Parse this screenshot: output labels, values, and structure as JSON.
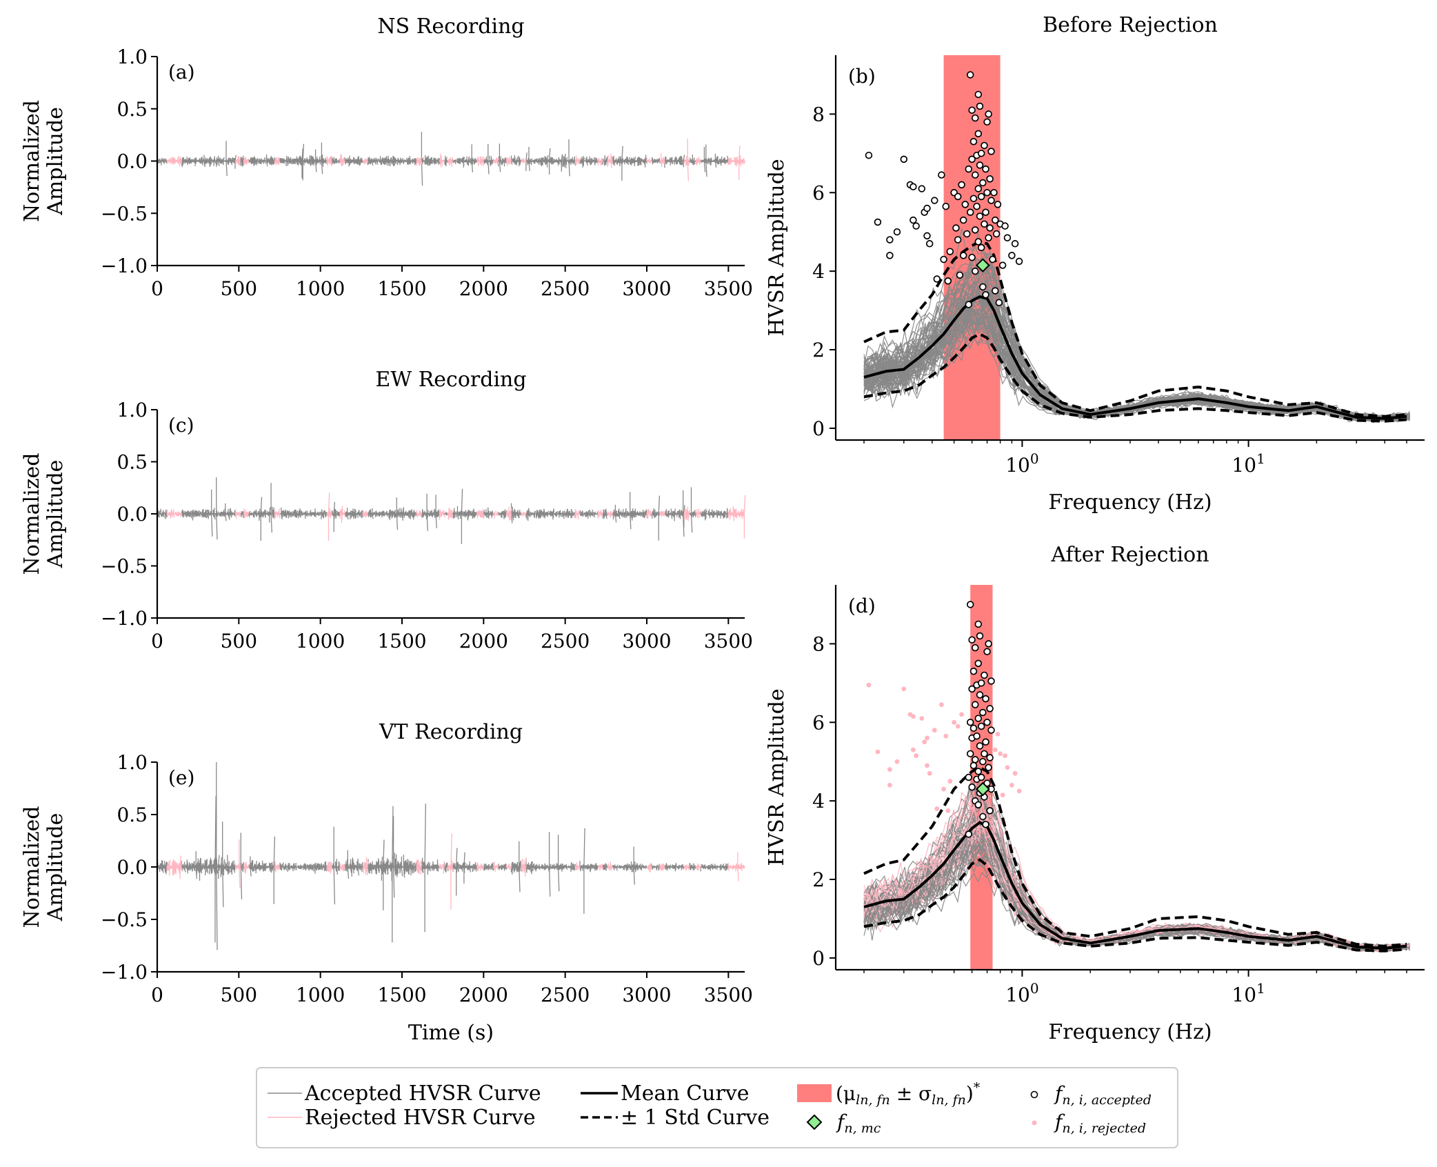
{
  "chart_data": [
    {
      "id": "a",
      "type": "line",
      "panel_label": "(a)",
      "title": "NS Recording",
      "xlabel": "",
      "ylabel": "Normalized\nAmplitude",
      "xlim": [
        0,
        3600
      ],
      "ylim": [
        -1.0,
        1.0
      ],
      "xticks": [
        "0",
        "500",
        "1000",
        "1500",
        "2000",
        "2500",
        "3000",
        "3500"
      ],
      "yticks": [
        "−1.0",
        "−0.5",
        "0.0",
        "0.5",
        "1.0"
      ],
      "noise_amplitude": 0.09,
      "peak_amplitude": 0.28,
      "rejected_windows": [
        [
          60,
          110
        ],
        [
          110,
          150
        ],
        [
          480,
          510
        ],
        [
          530,
          560
        ],
        [
          720,
          750
        ],
        [
          1040,
          1070
        ],
        [
          1120,
          1150
        ],
        [
          1260,
          1290
        ],
        [
          1590,
          1620
        ],
        [
          1730,
          1760
        ],
        [
          1780,
          1810
        ],
        [
          1960,
          2000
        ],
        [
          2060,
          2090
        ],
        [
          2140,
          2170
        ],
        [
          2230,
          2260
        ],
        [
          2560,
          2590
        ],
        [
          2700,
          2730
        ],
        [
          2760,
          2790
        ],
        [
          3000,
          3030
        ],
        [
          3080,
          3110
        ],
        [
          3230,
          3260
        ],
        [
          3300,
          3330
        ],
        [
          3500,
          3600
        ]
      ]
    },
    {
      "id": "c",
      "type": "line",
      "panel_label": "(c)",
      "title": "EW Recording",
      "xlabel": "",
      "ylabel": "Normalized\nAmplitude",
      "xlim": [
        0,
        3600
      ],
      "ylim": [
        -1.0,
        1.0
      ],
      "xticks": [
        "0",
        "500",
        "1000",
        "1500",
        "2000",
        "2500",
        "3000",
        "3500"
      ],
      "yticks": [
        "−1.0",
        "−0.5",
        "0.0",
        "0.5",
        "1.0"
      ],
      "noise_amplitude": 0.09,
      "peak_amplitude": 0.35,
      "rejected_windows": [
        [
          60,
          110
        ],
        [
          110,
          150
        ],
        [
          480,
          510
        ],
        [
          530,
          560
        ],
        [
          720,
          750
        ],
        [
          1040,
          1070
        ],
        [
          1120,
          1150
        ],
        [
          1260,
          1290
        ],
        [
          1590,
          1620
        ],
        [
          1730,
          1760
        ],
        [
          1780,
          1810
        ],
        [
          1960,
          2000
        ],
        [
          2060,
          2090
        ],
        [
          2140,
          2170
        ],
        [
          2230,
          2260
        ],
        [
          2560,
          2590
        ],
        [
          2700,
          2730
        ],
        [
          2760,
          2790
        ],
        [
          3000,
          3030
        ],
        [
          3080,
          3110
        ],
        [
          3230,
          3260
        ],
        [
          3300,
          3330
        ],
        [
          3500,
          3600
        ]
      ]
    },
    {
      "id": "e",
      "type": "line",
      "panel_label": "(e)",
      "title": "VT Recording",
      "xlabel": "Time (s)",
      "ylabel": "Normalized\nAmplitude",
      "xlim": [
        0,
        3600
      ],
      "ylim": [
        -1.0,
        1.0
      ],
      "xticks": [
        "0",
        "500",
        "1000",
        "1500",
        "2000",
        "2500",
        "3000",
        "3500"
      ],
      "yticks": [
        "−1.0",
        "−0.5",
        "0.0",
        "0.5",
        "1.0"
      ],
      "noise_amplitude": 0.1,
      "peak_amplitude": 1.0,
      "rejected_windows": [
        [
          60,
          110
        ],
        [
          110,
          150
        ],
        [
          480,
          510
        ],
        [
          530,
          560
        ],
        [
          720,
          750
        ],
        [
          1040,
          1070
        ],
        [
          1120,
          1150
        ],
        [
          1260,
          1290
        ],
        [
          1590,
          1620
        ],
        [
          1730,
          1760
        ],
        [
          1780,
          1810
        ],
        [
          1960,
          2000
        ],
        [
          2060,
          2090
        ],
        [
          2140,
          2170
        ],
        [
          2230,
          2260
        ],
        [
          2560,
          2590
        ],
        [
          2700,
          2730
        ],
        [
          2760,
          2790
        ],
        [
          3000,
          3030
        ],
        [
          3080,
          3110
        ],
        [
          3230,
          3260
        ],
        [
          3300,
          3330
        ],
        [
          3500,
          3600
        ]
      ]
    },
    {
      "id": "b",
      "type": "line",
      "panel_label": "(b)",
      "title": "Before Rejection",
      "xlabel": "Frequency (Hz)",
      "ylabel": "HVSR Amplitude",
      "x_scale": "log",
      "xlim": [
        0.15,
        60
      ],
      "ylim": [
        -0.3,
        9.5
      ],
      "yticks": [
        "0",
        "2",
        "4",
        "6",
        "8"
      ],
      "xtick_labels": [
        "10^0",
        "10^1"
      ],
      "fn_band": [
        0.45,
        0.8
      ],
      "fn_mc": {
        "f": 0.67,
        "amp": 4.15
      },
      "mean_curve": {
        "f": [
          0.2,
          0.25,
          0.3,
          0.35,
          0.4,
          0.45,
          0.5,
          0.55,
          0.6,
          0.65,
          0.7,
          0.75,
          0.8,
          0.9,
          1.0,
          1.2,
          1.5,
          2.0,
          3.0,
          4.0,
          6.0,
          8.0,
          10.0,
          15.0,
          20.0,
          30.0,
          40.0,
          50.0
        ],
        "amp": [
          1.3,
          1.45,
          1.5,
          1.8,
          2.1,
          2.4,
          2.75,
          3.05,
          3.25,
          3.35,
          3.3,
          3.0,
          2.6,
          1.9,
          1.4,
          0.85,
          0.5,
          0.35,
          0.5,
          0.65,
          0.75,
          0.65,
          0.55,
          0.45,
          0.55,
          0.28,
          0.25,
          0.3
        ]
      },
      "plus_std": [
        2.2,
        2.45,
        2.5,
        3.0,
        3.4,
        3.9,
        4.3,
        4.5,
        4.65,
        4.75,
        4.7,
        4.4,
        3.8,
        2.7,
        1.9,
        1.1,
        0.65,
        0.45,
        0.7,
        0.95,
        1.05,
        0.95,
        0.8,
        0.6,
        0.65,
        0.35,
        0.3,
        0.35
      ],
      "minus_std": [
        0.8,
        0.9,
        0.95,
        1.1,
        1.35,
        1.55,
        1.8,
        2.05,
        2.3,
        2.4,
        2.3,
        2.05,
        1.75,
        1.3,
        0.95,
        0.6,
        0.38,
        0.28,
        0.35,
        0.45,
        0.5,
        0.45,
        0.4,
        0.32,
        0.4,
        0.2,
        0.18,
        0.22
      ],
      "fn_i_accepted": [
        [
          0.21,
          6.95
        ],
        [
          0.23,
          5.25
        ],
        [
          0.26,
          4.8
        ],
        [
          0.26,
          4.4
        ],
        [
          0.28,
          5.0
        ],
        [
          0.3,
          6.85
        ],
        [
          0.32,
          6.2
        ],
        [
          0.33,
          6.15
        ],
        [
          0.33,
          5.3
        ],
        [
          0.34,
          5.15
        ],
        [
          0.36,
          6.1
        ],
        [
          0.37,
          5.5
        ],
        [
          0.38,
          5.6
        ],
        [
          0.38,
          4.9
        ],
        [
          0.39,
          4.7
        ],
        [
          0.41,
          5.8
        ],
        [
          0.42,
          3.8
        ],
        [
          0.44,
          6.45
        ],
        [
          0.45,
          4.3
        ],
        [
          0.46,
          5.65
        ],
        [
          0.47,
          3.75
        ],
        [
          0.48,
          4.5
        ],
        [
          0.5,
          6.0
        ],
        [
          0.51,
          5.1
        ],
        [
          0.52,
          4.8
        ],
        [
          0.52,
          5.9
        ],
        [
          0.53,
          3.9
        ],
        [
          0.54,
          6.2
        ],
        [
          0.55,
          5.3
        ],
        [
          0.55,
          4.4
        ],
        [
          0.56,
          5.7
        ],
        [
          0.57,
          4.95
        ],
        [
          0.58,
          6.6
        ],
        [
          0.58,
          3.15
        ],
        [
          0.59,
          9.0
        ],
        [
          0.59,
          5.5
        ],
        [
          0.6,
          8.1
        ],
        [
          0.6,
          6.85
        ],
        [
          0.6,
          4.35
        ],
        [
          0.61,
          7.3
        ],
        [
          0.61,
          5.85
        ],
        [
          0.62,
          7.9
        ],
        [
          0.62,
          6.45
        ],
        [
          0.62,
          5.05
        ],
        [
          0.62,
          4.0
        ],
        [
          0.63,
          6.95
        ],
        [
          0.63,
          5.65
        ],
        [
          0.64,
          8.5
        ],
        [
          0.64,
          7.5
        ],
        [
          0.64,
          6.1
        ],
        [
          0.64,
          4.75
        ],
        [
          0.65,
          8.2
        ],
        [
          0.65,
          6.7
        ],
        [
          0.65,
          5.4
        ],
        [
          0.66,
          7.0
        ],
        [
          0.66,
          5.9
        ],
        [
          0.66,
          4.6
        ],
        [
          0.67,
          3.6
        ],
        [
          0.67,
          6.25
        ],
        [
          0.68,
          7.2
        ],
        [
          0.68,
          5.2
        ],
        [
          0.69,
          6.6
        ],
        [
          0.69,
          5.5
        ],
        [
          0.69,
          3.4
        ],
        [
          0.7,
          7.8
        ],
        [
          0.7,
          6.0
        ],
        [
          0.71,
          8.0
        ],
        [
          0.71,
          4.85
        ],
        [
          0.72,
          6.35
        ],
        [
          0.72,
          5.1
        ],
        [
          0.73,
          7.05
        ],
        [
          0.73,
          5.8
        ],
        [
          0.74,
          4.3
        ],
        [
          0.75,
          6.0
        ],
        [
          0.76,
          5.3
        ],
        [
          0.76,
          3.5
        ],
        [
          0.77,
          4.95
        ],
        [
          0.78,
          5.7
        ],
        [
          0.79,
          3.2
        ],
        [
          0.8,
          5.2
        ],
        [
          0.82,
          4.15
        ],
        [
          0.84,
          5.15
        ],
        [
          0.86,
          4.85
        ],
        [
          0.9,
          4.4
        ],
        [
          0.93,
          4.7
        ],
        [
          0.97,
          4.25
        ]
      ],
      "legend": {
        "accepted": "Accepted HVSR Curve",
        "rejected": "Rejected HVSR Curve",
        "mean": "Mean Curve",
        "std": "± 1 Std Curve"
      }
    },
    {
      "id": "d",
      "type": "line",
      "panel_label": "(d)",
      "title": "After Rejection",
      "xlabel": "Frequency (Hz)",
      "ylabel": "HVSR Amplitude",
      "x_scale": "log",
      "xlim": [
        0.15,
        60
      ],
      "ylim": [
        -0.3,
        9.5
      ],
      "yticks": [
        "0",
        "2",
        "4",
        "6",
        "8"
      ],
      "xtick_labels": [
        "10^0",
        "10^1"
      ],
      "fn_band": [
        0.59,
        0.74
      ],
      "fn_mc": {
        "f": 0.67,
        "amp": 4.3
      },
      "mean_curve": {
        "f": [
          0.2,
          0.25,
          0.3,
          0.35,
          0.4,
          0.45,
          0.5,
          0.55,
          0.6,
          0.65,
          0.7,
          0.75,
          0.8,
          0.9,
          1.0,
          1.2,
          1.5,
          2.0,
          3.0,
          4.0,
          6.0,
          8.0,
          10.0,
          15.0,
          20.0,
          30.0,
          40.0,
          50.0
        ],
        "amp": [
          1.3,
          1.45,
          1.5,
          1.8,
          2.1,
          2.4,
          2.75,
          3.05,
          3.3,
          3.45,
          3.35,
          3.0,
          2.6,
          1.9,
          1.4,
          0.85,
          0.5,
          0.38,
          0.55,
          0.7,
          0.75,
          0.65,
          0.55,
          0.45,
          0.55,
          0.28,
          0.25,
          0.3
        ]
      },
      "plus_std": [
        2.15,
        2.4,
        2.5,
        2.95,
        3.35,
        3.85,
        4.3,
        4.55,
        4.75,
        4.85,
        4.75,
        4.4,
        3.8,
        2.7,
        1.9,
        1.1,
        0.65,
        0.55,
        0.75,
        1.0,
        1.05,
        0.95,
        0.8,
        0.6,
        0.65,
        0.35,
        0.3,
        0.35
      ],
      "minus_std": [
        0.8,
        0.9,
        0.95,
        1.1,
        1.35,
        1.55,
        1.8,
        2.1,
        2.4,
        2.5,
        2.35,
        2.05,
        1.75,
        1.3,
        0.95,
        0.6,
        0.38,
        0.3,
        0.38,
        0.5,
        0.52,
        0.45,
        0.4,
        0.32,
        0.4,
        0.2,
        0.18,
        0.22
      ],
      "fn_i_accepted": [
        [
          0.58,
          4.6
        ],
        [
          0.58,
          3.15
        ],
        [
          0.59,
          9.0
        ],
        [
          0.59,
          6.0
        ],
        [
          0.59,
          5.2
        ],
        [
          0.6,
          8.1
        ],
        [
          0.6,
          6.85
        ],
        [
          0.6,
          5.6
        ],
        [
          0.6,
          4.35
        ],
        [
          0.61,
          7.3
        ],
        [
          0.61,
          5.85
        ],
        [
          0.61,
          4.9
        ],
        [
          0.62,
          7.9
        ],
        [
          0.62,
          6.45
        ],
        [
          0.62,
          5.05
        ],
        [
          0.62,
          4.0
        ],
        [
          0.63,
          6.95
        ],
        [
          0.63,
          5.65
        ],
        [
          0.63,
          4.55
        ],
        [
          0.64,
          8.5
        ],
        [
          0.64,
          7.5
        ],
        [
          0.64,
          6.1
        ],
        [
          0.64,
          4.75
        ],
        [
          0.64,
          3.9
        ],
        [
          0.65,
          8.2
        ],
        [
          0.65,
          6.7
        ],
        [
          0.65,
          5.4
        ],
        [
          0.65,
          4.2
        ],
        [
          0.66,
          7.0
        ],
        [
          0.66,
          5.9
        ],
        [
          0.66,
          4.6
        ],
        [
          0.67,
          3.6
        ],
        [
          0.67,
          6.25
        ],
        [
          0.67,
          5.0
        ],
        [
          0.68,
          7.2
        ],
        [
          0.68,
          5.2
        ],
        [
          0.68,
          4.1
        ],
        [
          0.69,
          6.6
        ],
        [
          0.69,
          5.5
        ],
        [
          0.69,
          3.4
        ],
        [
          0.7,
          7.8
        ],
        [
          0.7,
          6.0
        ],
        [
          0.7,
          4.45
        ],
        [
          0.71,
          8.0
        ],
        [
          0.71,
          4.85
        ],
        [
          0.72,
          6.35
        ],
        [
          0.72,
          5.1
        ],
        [
          0.72,
          3.75
        ],
        [
          0.73,
          7.05
        ],
        [
          0.73,
          5.8
        ],
        [
          0.73,
          4.3
        ]
      ],
      "fn_i_rejected": [
        [
          0.21,
          6.95
        ],
        [
          0.23,
          5.25
        ],
        [
          0.26,
          4.8
        ],
        [
          0.26,
          4.4
        ],
        [
          0.28,
          5.0
        ],
        [
          0.3,
          6.85
        ],
        [
          0.32,
          6.2
        ],
        [
          0.33,
          6.15
        ],
        [
          0.33,
          5.3
        ],
        [
          0.34,
          5.15
        ],
        [
          0.36,
          6.1
        ],
        [
          0.37,
          5.5
        ],
        [
          0.38,
          5.6
        ],
        [
          0.38,
          4.9
        ],
        [
          0.39,
          4.7
        ],
        [
          0.41,
          5.8
        ],
        [
          0.42,
          3.8
        ],
        [
          0.44,
          6.45
        ],
        [
          0.45,
          4.3
        ],
        [
          0.46,
          5.65
        ],
        [
          0.47,
          3.75
        ],
        [
          0.48,
          4.5
        ],
        [
          0.5,
          6.0
        ],
        [
          0.52,
          5.9
        ],
        [
          0.54,
          6.2
        ],
        [
          0.76,
          5.3
        ],
        [
          0.78,
          5.7
        ],
        [
          0.8,
          5.2
        ],
        [
          0.82,
          4.15
        ],
        [
          0.84,
          5.15
        ],
        [
          0.86,
          4.85
        ],
        [
          0.9,
          4.4
        ],
        [
          0.93,
          4.7
        ],
        [
          0.97,
          4.25
        ]
      ]
    }
  ],
  "legend": {
    "accepted_curve": "Accepted HVSR Curve",
    "rejected_curve": "Rejected HVSR Curve",
    "mean_curve": "Mean Curve",
    "std_curve": "± 1 Std Curve",
    "band": "(μ",
    "band_sub1": "ln, fn",
    "band_mid": " ± σ",
    "band_sub2": "ln, fn",
    "band_end": ")",
    "band_sup": "*",
    "fn_mc": "f",
    "fn_mc_sub": "n, mc",
    "fn_acc": "f",
    "fn_acc_sub": "n, i, accepted",
    "fn_rej": "f",
    "fn_rej_sub": "n, i, rejected"
  },
  "colors": {
    "accepted": "#888888",
    "rejected": "#ffb6c1",
    "band": "#ff7f7f",
    "mean": "#000000",
    "fn_mc": "#90ee90",
    "frame": "#000000"
  }
}
